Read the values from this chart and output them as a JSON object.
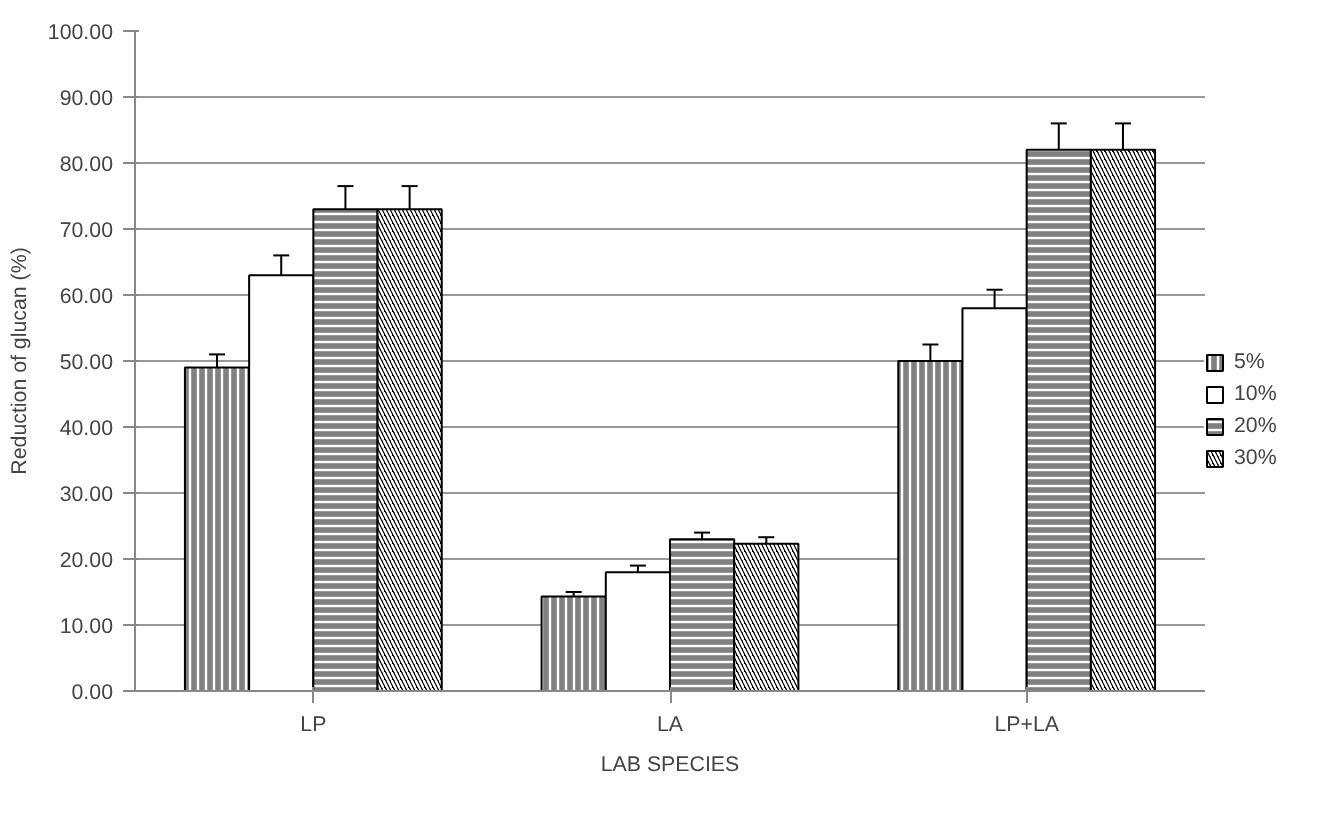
{
  "chart_data": {
    "type": "bar",
    "xlabel": "LAB SPECIES",
    "ylabel": "Reduction of glucan (%)",
    "categories": [
      "LP",
      "LA",
      "LP+LA"
    ],
    "series": [
      {
        "name": "5%",
        "color": "#808080",
        "values": [
          49,
          14.3,
          50
        ],
        "errors": [
          2,
          0.7,
          2.5
        ]
      },
      {
        "name": "10%",
        "color": "#ffffff",
        "values": [
          63,
          18,
          58
        ],
        "errors": [
          3,
          1,
          2.8
        ]
      },
      {
        "name": "20%",
        "color": "#808080",
        "values": [
          73,
          23,
          82
        ],
        "errors": [
          3.5,
          1,
          4
        ]
      },
      {
        "name": "30%",
        "color": "#000000",
        "values": [
          73,
          22.3,
          82
        ],
        "errors": [
          3.5,
          1,
          4
        ]
      }
    ],
    "ylim": [
      0,
      100
    ],
    "yticks": [
      {
        "value": 0,
        "label": "0.00"
      },
      {
        "value": 10,
        "label": "10.00"
      },
      {
        "value": 20,
        "label": "20.00"
      },
      {
        "value": 30,
        "label": "30.00"
      },
      {
        "value": 40,
        "label": "40.00"
      },
      {
        "value": 50,
        "label": "50.00"
      },
      {
        "value": 60,
        "label": "60.00"
      },
      {
        "value": 70,
        "label": "70.00"
      },
      {
        "value": 80,
        "label": "80.00"
      },
      {
        "value": 90,
        "label": "90.00"
      },
      {
        "value": 100,
        "label": "100.00"
      }
    ],
    "grid": "y",
    "legend": "right"
  }
}
